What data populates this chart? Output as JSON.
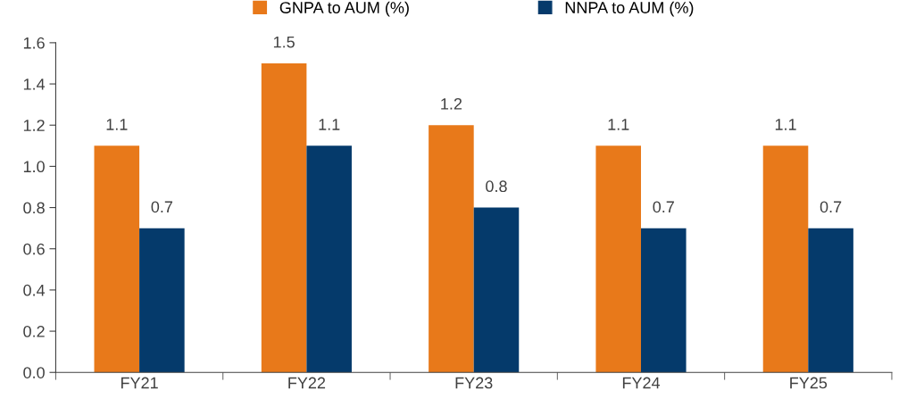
{
  "chart_data": {
    "type": "bar",
    "categories": [
      "FY21",
      "FY22",
      "FY23",
      "FY24",
      "FY25"
    ],
    "series": [
      {
        "name": "GNPA to AUM (%)",
        "color": "#e8791a",
        "values": [
          1.1,
          1.5,
          1.2,
          1.1,
          1.1
        ]
      },
      {
        "name": "NNPA to AUM (%)",
        "color": "#053a6b",
        "values": [
          0.7,
          1.1,
          0.8,
          0.7,
          0.7
        ]
      }
    ],
    "ylim": [
      0,
      1.6
    ],
    "yticks": [
      {
        "value": 0,
        "label": "0.0"
      },
      {
        "value": 0.2,
        "label": "0.2"
      },
      {
        "value": 0.4,
        "label": "0.4"
      },
      {
        "value": 0.6,
        "label": "0.6"
      },
      {
        "value": 0.8,
        "label": "0.8"
      },
      {
        "value": 1,
        "label": "1.0"
      },
      {
        "value": 1.2,
        "label": "1.2"
      },
      {
        "value": 1.4,
        "label": "1.4"
      },
      {
        "value": 1.6,
        "label": "1.6"
      }
    ],
    "data_labels": true,
    "legend": "top",
    "grid": false
  }
}
